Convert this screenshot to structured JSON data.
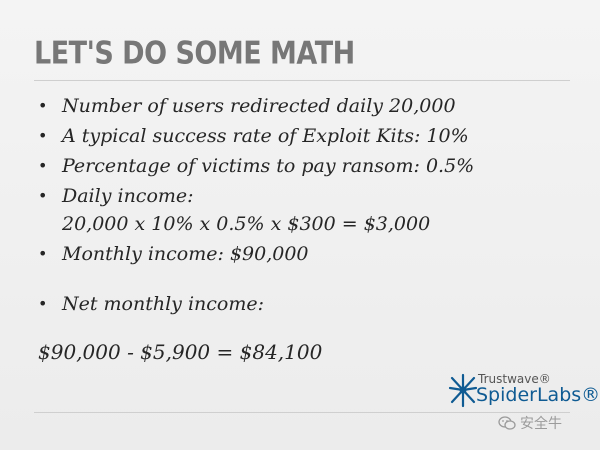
{
  "slide": {
    "title": "LET'S DO SOME MATH",
    "bullets": [
      {
        "text": "Number of users redirected daily  20,000"
      },
      {
        "text": "A typical success rate of Exploit Kits: 10%"
      },
      {
        "text": "Percentage of victims to pay ransom: 0.5%"
      },
      {
        "text": "Daily income:",
        "sub": "20,000 x 10% x 0.5% x $300 = $3,000"
      },
      {
        "text": "Monthly income: $90,000"
      },
      {
        "text": "Net monthly income:"
      }
    ],
    "final_line": "$90,000 - $5,900 = $84,100"
  },
  "logo": {
    "line1": "Trustwave®",
    "line2": "SpiderLabs®",
    "icon": "spider-icon",
    "color": "#0f5b93"
  },
  "watermark": {
    "text": "安全牛",
    "icon": "wechat-icon"
  }
}
